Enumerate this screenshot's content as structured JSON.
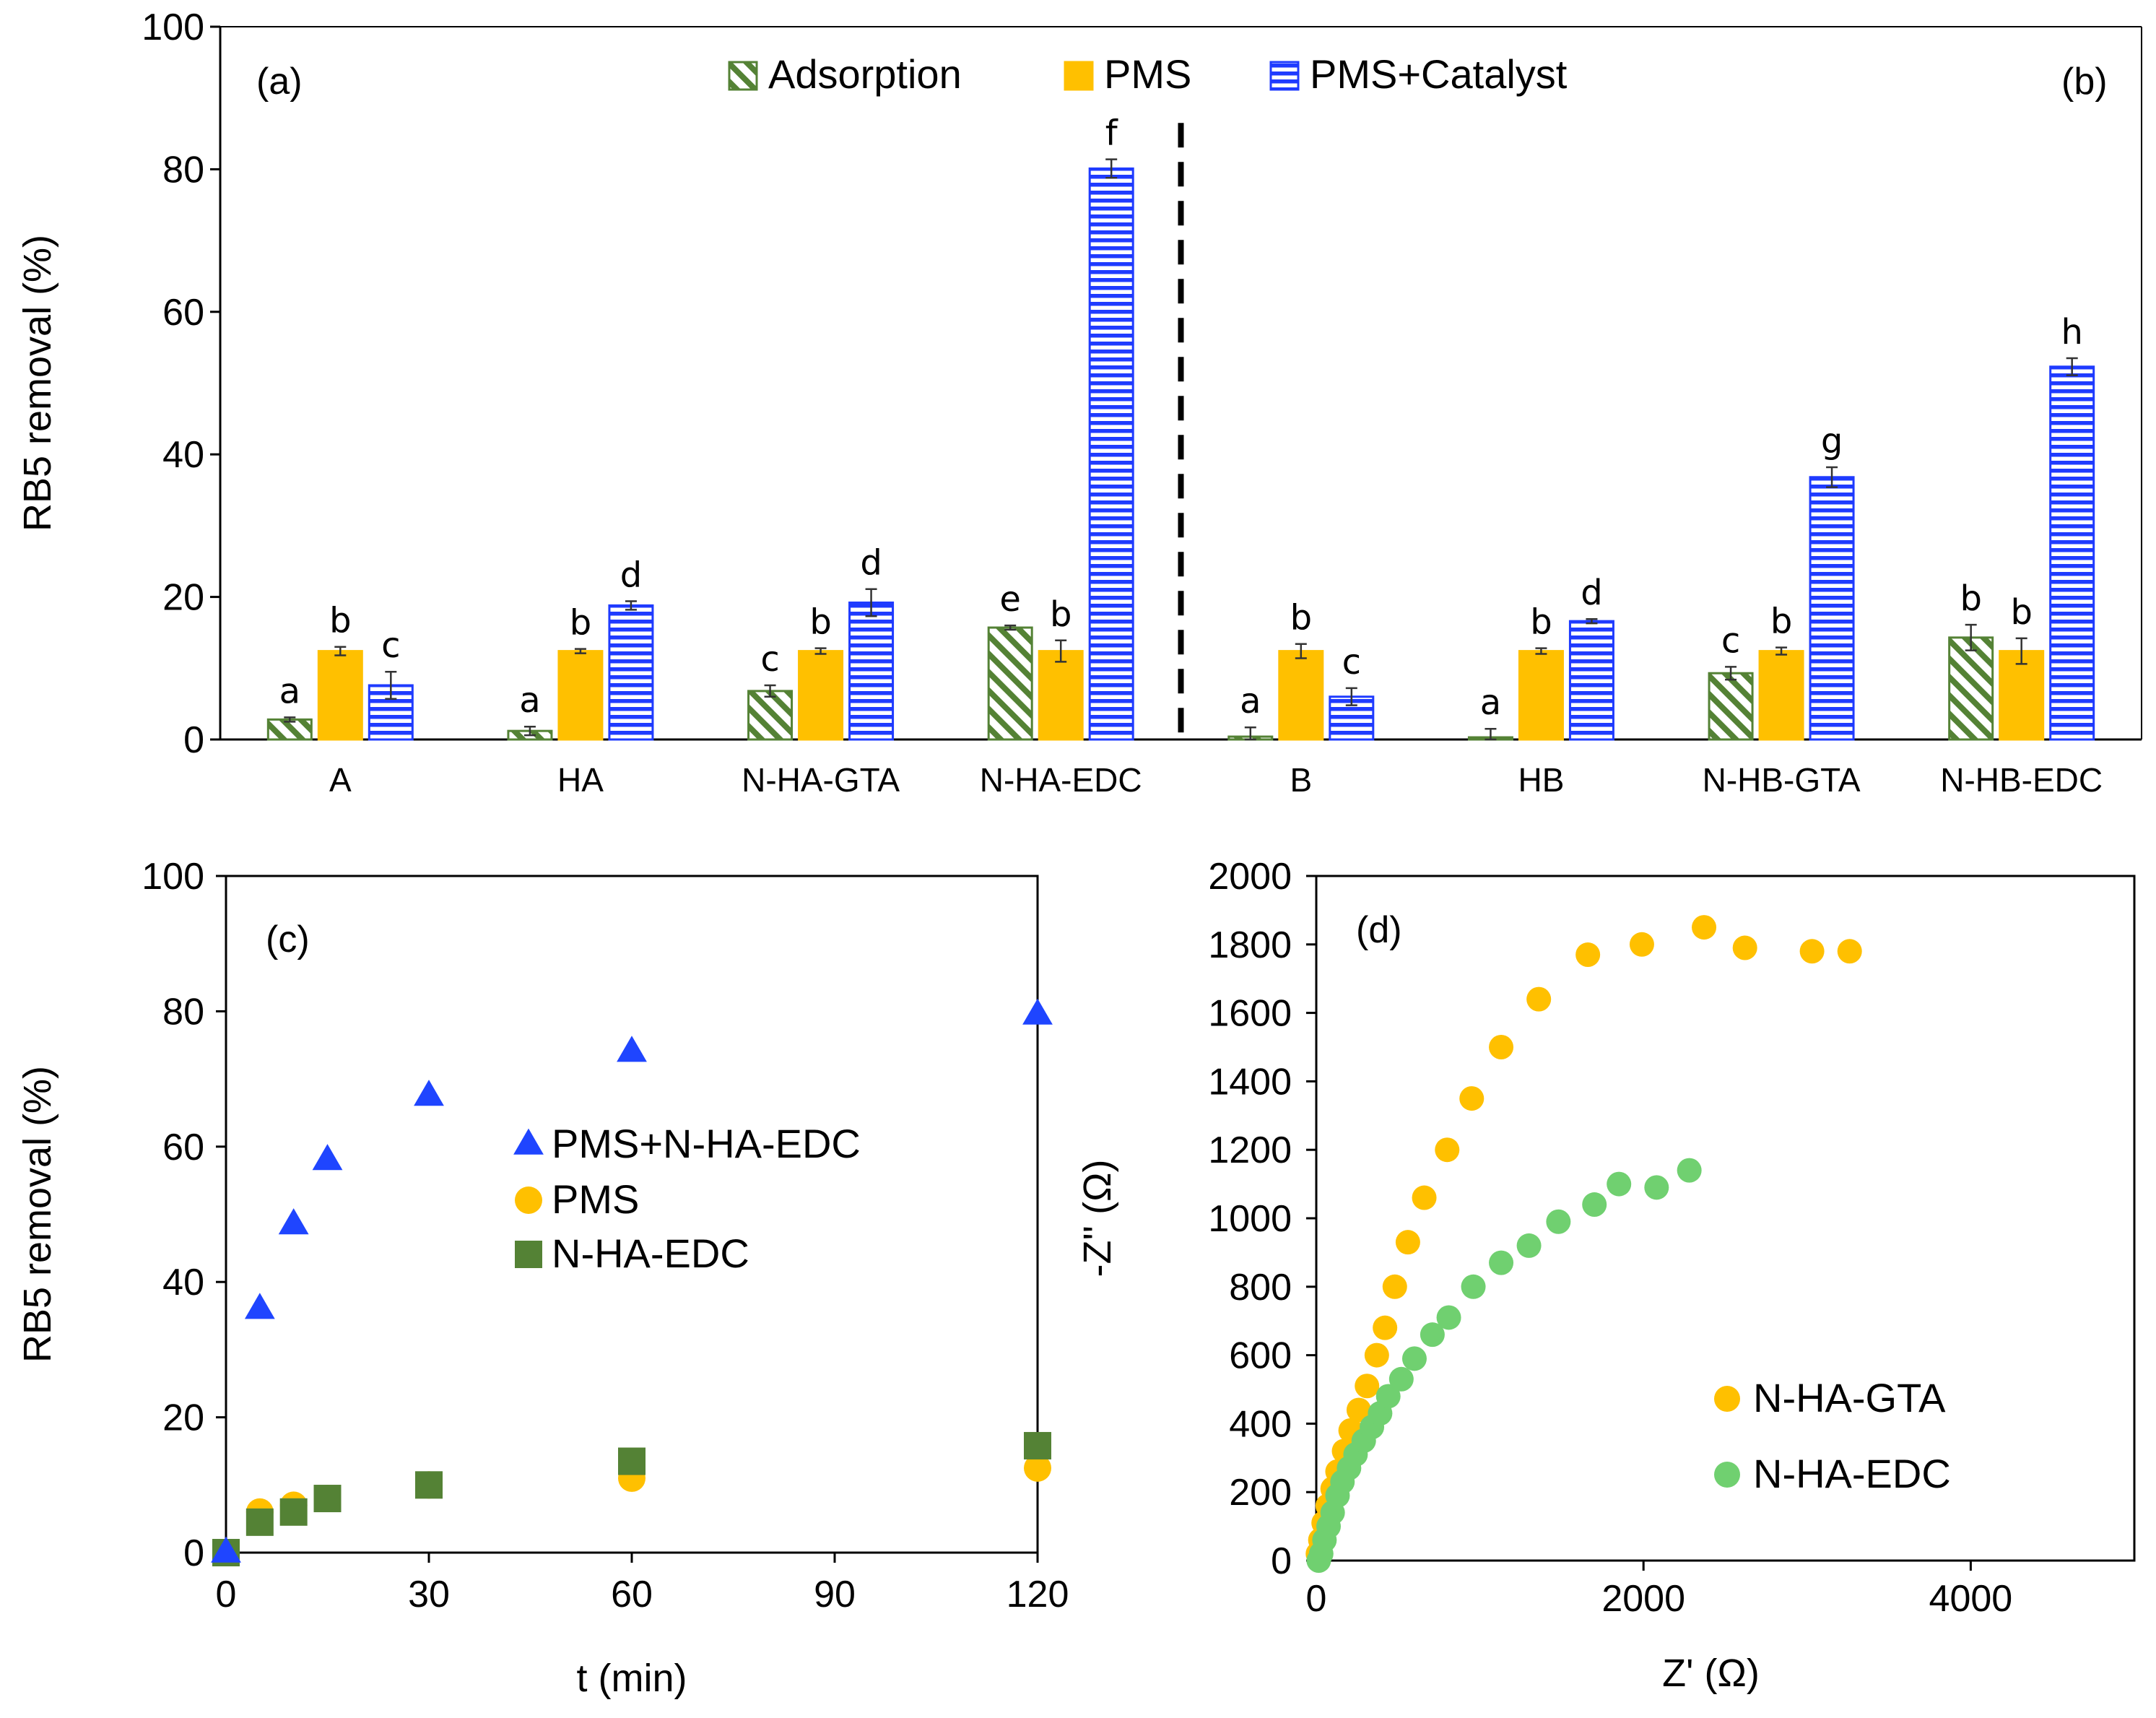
{
  "colors": {
    "adsorption": "#548235",
    "pms": "#ffc000",
    "catalyst": "#1f3bff",
    "triangle": "#1f45ff",
    "circle_pms": "#ffc000",
    "square": "#548235",
    "gta": "#ffc000",
    "edc": "#70d070"
  },
  "chart_data": [
    {
      "id": "ab",
      "type": "bar",
      "panel_labels": [
        "(a)",
        "(b)"
      ],
      "ylabel": "RB5 removal (%)",
      "ylim": [
        0,
        100
      ],
      "yticks": [
        "0",
        "20",
        "40",
        "60",
        "80",
        "100"
      ],
      "categories": [
        "A",
        "HA",
        "N-HA-GTA",
        "N-HA-EDC",
        "B",
        "HB",
        "N-HB-GTA",
        "N-HB-EDC"
      ],
      "divider_after_category": 4,
      "series": [
        {
          "name": "Adsorption",
          "key": "adsorption",
          "values": [
            2.8,
            1.2,
            6.8,
            15.7,
            0.4,
            0.3,
            9.3,
            14.3
          ],
          "errors": [
            0.3,
            0.6,
            0.8,
            0.3,
            1.3,
            1.2,
            0.9,
            1.8
          ],
          "sig": [
            "a",
            "a",
            "c",
            "e",
            "a",
            "a",
            "c",
            "b"
          ]
        },
        {
          "name": "PMS",
          "key": "pms",
          "values": [
            12.4,
            12.4,
            12.4,
            12.4,
            12.4,
            12.4,
            12.4,
            12.4
          ],
          "errors": [
            0.6,
            0.3,
            0.4,
            1.5,
            1.0,
            0.4,
            0.5,
            1.8
          ],
          "sig": [
            "b",
            "b",
            "b",
            "b",
            "b",
            "b",
            "b",
            "b"
          ]
        },
        {
          "name": "PMS+Catalyst",
          "key": "catalyst",
          "values": [
            7.6,
            18.8,
            19.2,
            80.1,
            6.0,
            16.6,
            36.8,
            52.3
          ],
          "errors": [
            1.9,
            0.6,
            1.9,
            1.3,
            1.2,
            0.3,
            1.4,
            1.2
          ],
          "sig": [
            "c",
            "d",
            "d",
            "f",
            "c",
            "d",
            "g",
            "h"
          ]
        }
      ]
    },
    {
      "id": "c",
      "type": "scatter",
      "panel_label": "(c)",
      "xlabel": "t (min)",
      "ylabel": "RB5 removal (%)",
      "xlim": [
        0,
        120
      ],
      "ylim": [
        0,
        100
      ],
      "xticks": [
        "0",
        "30",
        "60",
        "90",
        "120"
      ],
      "yticks": [
        "0",
        "20",
        "40",
        "60",
        "80",
        "100"
      ],
      "series": [
        {
          "name": "PMS+N-HA-EDC",
          "key": "triangle",
          "x": [
            0,
            5,
            10,
            15,
            30,
            60,
            120
          ],
          "y": [
            0,
            36,
            48.5,
            58,
            67.5,
            74,
            79.5
          ]
        },
        {
          "name": "PMS",
          "key": "circle_pms",
          "x": [
            0,
            5,
            10,
            15,
            30,
            60,
            120
          ],
          "y": [
            0,
            6,
            7,
            8,
            10,
            11,
            12.5
          ]
        },
        {
          "name": "N-HA-EDC",
          "key": "square",
          "x": [
            0,
            5,
            10,
            15,
            30,
            60,
            120
          ],
          "y": [
            0,
            4.5,
            6,
            8,
            10,
            13.5,
            15.8
          ]
        }
      ]
    },
    {
      "id": "d",
      "type": "scatter",
      "panel_label": "(d)",
      "xlabel": "Z' (Ω)",
      "ylabel": "-Z'' (Ω)",
      "xlim": [
        0,
        5000
      ],
      "ylim": [
        0,
        2000
      ],
      "xticks": [
        "0",
        "2000",
        "4000"
      ],
      "yticks": [
        "0",
        "200",
        "400",
        "600",
        "800",
        "1000",
        "1200",
        "1400",
        "1600",
        "1800",
        "2000"
      ],
      "series": [
        {
          "name": "N-HA-GTA",
          "key": "gta",
          "x": [
            10,
            25,
            45,
            70,
            100,
            130,
            170,
            210,
            260,
            310,
            370,
            420,
            480,
            560,
            660,
            800,
            950,
            1130,
            1360,
            1660,
            1990,
            2370,
            2620,
            3030,
            3260
          ],
          "y": [
            20,
            60,
            110,
            160,
            210,
            260,
            320,
            380,
            440,
            510,
            600,
            680,
            800,
            930,
            1060,
            1200,
            1350,
            1500,
            1640,
            1770,
            1800,
            1850,
            1790,
            1780,
            1780
          ]
        },
        {
          "name": "N-HA-EDC",
          "key": "edc",
          "x": [
            15,
            30,
            50,
            75,
            100,
            130,
            160,
            200,
            240,
            290,
            340,
            390,
            440,
            520,
            600,
            710,
            810,
            960,
            1130,
            1300,
            1480,
            1700,
            1850,
            2080,
            2280
          ],
          "y": [
            0,
            20,
            60,
            100,
            140,
            190,
            230,
            270,
            310,
            350,
            390,
            430,
            480,
            530,
            590,
            660,
            710,
            800,
            870,
            920,
            990,
            1040,
            1100,
            1090,
            1140
          ]
        }
      ]
    }
  ]
}
